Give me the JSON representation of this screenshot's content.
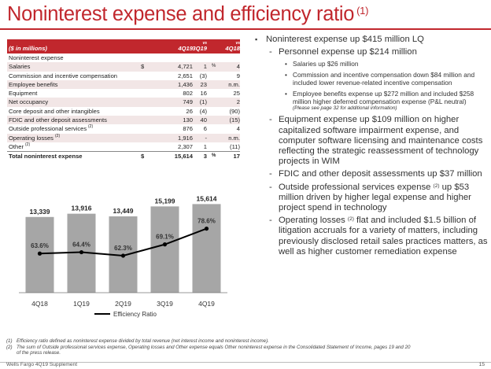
{
  "title": "Noninterest expense and efficiency ratio",
  "title_footnote": "(1)",
  "table": {
    "header_label": "($ in millions)",
    "col1": "4Q19",
    "col2_small": "vs",
    "col2": "3Q19",
    "col3_small": "vs",
    "col3": "4Q18",
    "rows": [
      {
        "label": "Noninterest expense",
        "sup": "",
        "dollar": "",
        "v1": "",
        "v2": "",
        "pct": "",
        "v3": "",
        "shade": false,
        "bold": false
      },
      {
        "label": "Salaries",
        "sup": "",
        "dollar": "$",
        "v1": "4,721",
        "v2": "1",
        "pct": "%",
        "v3": "4",
        "shade": true,
        "bold": false
      },
      {
        "label": "Commission and incentive compensation",
        "sup": "",
        "dollar": "",
        "v1": "2,651",
        "v2": "(3)",
        "pct": "",
        "v3": "9",
        "shade": false,
        "bold": false
      },
      {
        "label": "Employee benefits",
        "sup": "",
        "dollar": "",
        "v1": "1,436",
        "v2": "23",
        "pct": "",
        "v3": "n.m.",
        "shade": true,
        "bold": false
      },
      {
        "label": "Equipment",
        "sup": "",
        "dollar": "",
        "v1": "802",
        "v2": "16",
        "pct": "",
        "v3": "25",
        "shade": false,
        "bold": false
      },
      {
        "label": "Net occupancy",
        "sup": "",
        "dollar": "",
        "v1": "749",
        "v2": "(1)",
        "pct": "",
        "v3": "2",
        "shade": true,
        "bold": false
      },
      {
        "label": "Core deposit and other intangibles",
        "sup": "",
        "dollar": "",
        "v1": "26",
        "v2": "(4)",
        "pct": "",
        "v3": "(90)",
        "shade": false,
        "bold": false
      },
      {
        "label": "FDIC and other deposit assessments",
        "sup": "",
        "dollar": "",
        "v1": "130",
        "v2": "40",
        "pct": "",
        "v3": "(15)",
        "shade": true,
        "bold": false
      },
      {
        "label": "Outside professional services",
        "sup": "(2)",
        "dollar": "",
        "v1": "876",
        "v2": "6",
        "pct": "",
        "v3": "4",
        "shade": false,
        "bold": false
      },
      {
        "label": "Operating losses",
        "sup": "(2)",
        "dollar": "",
        "v1": "1,916",
        "v2": "-",
        "pct": "",
        "v3": "n.m.",
        "shade": true,
        "bold": false
      },
      {
        "label": "Other",
        "sup": "(2)",
        "dollar": "",
        "v1": "2,307",
        "v2": "1",
        "pct": "",
        "v3": "(11)",
        "shade": false,
        "bold": false
      },
      {
        "label": "Total noninterest expense",
        "sup": "",
        "dollar": "$",
        "v1": "15,614",
        "v2": "3",
        "pct": "%",
        "v3": "17",
        "shade": false,
        "bold": true
      }
    ]
  },
  "chart_data": {
    "type": "bar",
    "categories": [
      "4Q18",
      "1Q19",
      "2Q19",
      "3Q19",
      "4Q19"
    ],
    "values": [
      13339,
      13916,
      13449,
      15199,
      15614
    ],
    "value_labels": [
      "13,339",
      "13,916",
      "13,449",
      "15,199",
      "15,614"
    ],
    "line_series": {
      "name": "Efficiency Ratio",
      "values": [
        63.6,
        64.4,
        62.3,
        69.1,
        78.6
      ],
      "labels": [
        "63.6%",
        "64.4%",
        "62.3%",
        "69.1%",
        "78.6%"
      ]
    },
    "bar_colors": [
      "#a6a6a6",
      "#a6a6a6",
      "#a6a6a6",
      "#a6a6a6",
      "#a6a6a6"
    ],
    "line_color": "#000000"
  },
  "bullets": {
    "main": "Noninterest expense up $415 million LQ",
    "personnel": "Personnel expense up $214 million",
    "salaries": "Salaries up $26 million",
    "commission": "Commission and incentive compensation down $84 million and included lower revenue-related incentive compensation",
    "benefits": "Employee benefits expense up $272 million and included $258 million higher deferred compensation expense (P&L neutral)",
    "benefits_note": "(Please see page 32 for additional information)",
    "equipment": "Equipment expense up $109 million on higher capitalized software impairment expense, and computer software licensing and maintenance costs reflecting the strategic reassessment of technology projects in WIM",
    "fdic": "FDIC and other deposit assessments up $37 million",
    "outside_a": "Outside professional services expense",
    "outside_sup": "(2)",
    "outside_b": "up $53 million driven by higher legal expense and higher project spend in technology",
    "oplosses_a": "Operating losses",
    "oplosses_sup": "(2)",
    "oplosses_b": "flat and included $1.5 billion of litigation accruals for a variety of matters, including previously disclosed retail sales practices matters, as well as higher customer remediation expense"
  },
  "footnotes": {
    "n1": "(1)",
    "f1": "Efficiency ratio defined as noninterest expense divided by total revenue (net interest income and noninterest income).",
    "n2": "(2)",
    "f2": "The sum of Outside professional services expense, Operating losses and Other expense equals Other noninterest expense in the Consolidated Statement of Income, pages 19 and 20 of the press release."
  },
  "footer": {
    "brand": "Wells Fargo 4Q19 Supplement",
    "page": "15"
  },
  "colors": {
    "accent": "#c1272d",
    "row_shade": "#f2e6e6",
    "bar": "#a6a6a6"
  }
}
